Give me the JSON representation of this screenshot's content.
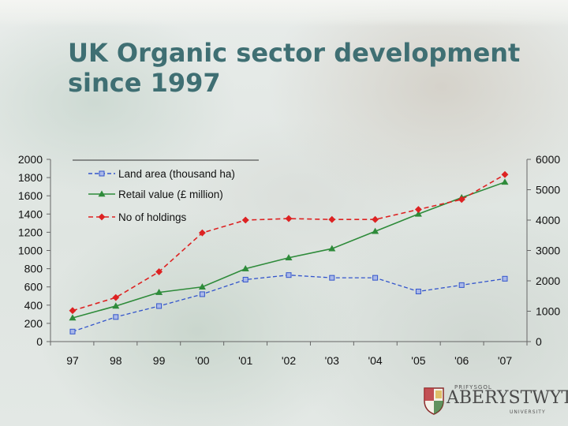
{
  "slide": {
    "title_line1": "UK Organic sector development",
    "title_line2": "since 1997"
  },
  "logo": {
    "small_text": "PRIFYSGOL",
    "big_text": "ABERYSTWYTH",
    "sub_text": "UNIVERSITY"
  },
  "chart_data": {
    "type": "line",
    "categories": [
      "97",
      "98",
      "99",
      "'00",
      "'01",
      "'02",
      "'03",
      "'04",
      "'05",
      "'06",
      "'07"
    ],
    "y_left": {
      "min": 0,
      "max": 2000,
      "ticks": [
        0,
        200,
        400,
        600,
        800,
        1000,
        1200,
        1400,
        1600,
        1800,
        2000
      ]
    },
    "y_right": {
      "min": 0,
      "max": 6000,
      "ticks": [
        0,
        1000,
        2000,
        3000,
        4000,
        5000,
        6000
      ]
    },
    "grid": false,
    "legend_position": "top-left",
    "series": [
      {
        "name": "Land area (thousand ha)",
        "axis": "left",
        "color": "#3355cc",
        "marker": "square",
        "dash": "dashed",
        "values": [
          110,
          270,
          390,
          520,
          680,
          730,
          700,
          700,
          550,
          620,
          690
        ]
      },
      {
        "name": "Retail value (£ million)",
        "axis": "left",
        "color": "#2e8b3a",
        "marker": "triangle",
        "dash": "solid",
        "values": [
          260,
          390,
          540,
          600,
          800,
          920,
          1020,
          1210,
          1400,
          1580,
          1750
        ]
      },
      {
        "name": "No of holdings",
        "axis": "right",
        "color": "#dd2222",
        "marker": "diamond",
        "dash": "dashed",
        "values": [
          1020,
          1450,
          2300,
          3580,
          4000,
          4050,
          4020,
          4020,
          4350,
          4680,
          5500
        ]
      }
    ]
  }
}
